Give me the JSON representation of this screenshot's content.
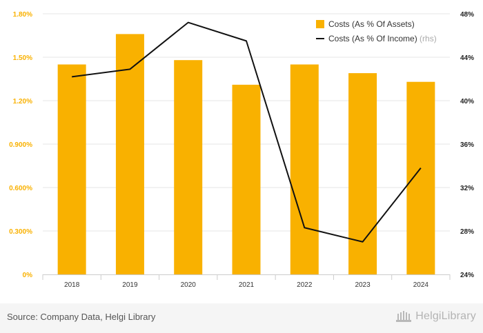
{
  "chart_data": {
    "type": "bar",
    "categories": [
      "2018",
      "2019",
      "2020",
      "2021",
      "2022",
      "2023",
      "2024"
    ],
    "series": [
      {
        "name": "Costs (As % Of Assets)",
        "type": "bar",
        "axis": "left",
        "color": "#f9b100",
        "values": [
          1.45,
          1.66,
          1.48,
          1.31,
          1.45,
          1.39,
          1.33
        ]
      },
      {
        "name": "Costs (As % Of Income)",
        "type": "line",
        "axis": "right",
        "color": "#111111",
        "values": [
          42.2,
          42.9,
          47.2,
          45.5,
          28.3,
          27.0,
          33.8
        ]
      }
    ],
    "y_left": {
      "lim": [
        0,
        1.8
      ],
      "ticks": [
        0,
        0.3,
        0.6,
        0.9,
        1.2,
        1.5,
        1.8
      ],
      "tick_labels": [
        "0%",
        "0.300%",
        "0.600%",
        "0.900%",
        "1.20%",
        "1.50%",
        "1.80%"
      ],
      "color": "#f9b100"
    },
    "y_right": {
      "lim": [
        24,
        48
      ],
      "ticks": [
        24,
        28,
        32,
        36,
        40,
        44,
        48
      ],
      "tick_labels": [
        "24%",
        "28%",
        "32%",
        "36%",
        "40%",
        "44%",
        "48%"
      ],
      "color": "#222222"
    },
    "legend": {
      "position": "top-right",
      "entries": [
        "Costs (As % Of Assets)",
        "Costs (As % Of Income)"
      ],
      "suffix": "(rhs)"
    },
    "grid": true
  },
  "footer": {
    "source": "Source: Company Data, Helgi Library",
    "brand": "HelgiLibrary",
    "brand_icon": "library-building-icon"
  }
}
